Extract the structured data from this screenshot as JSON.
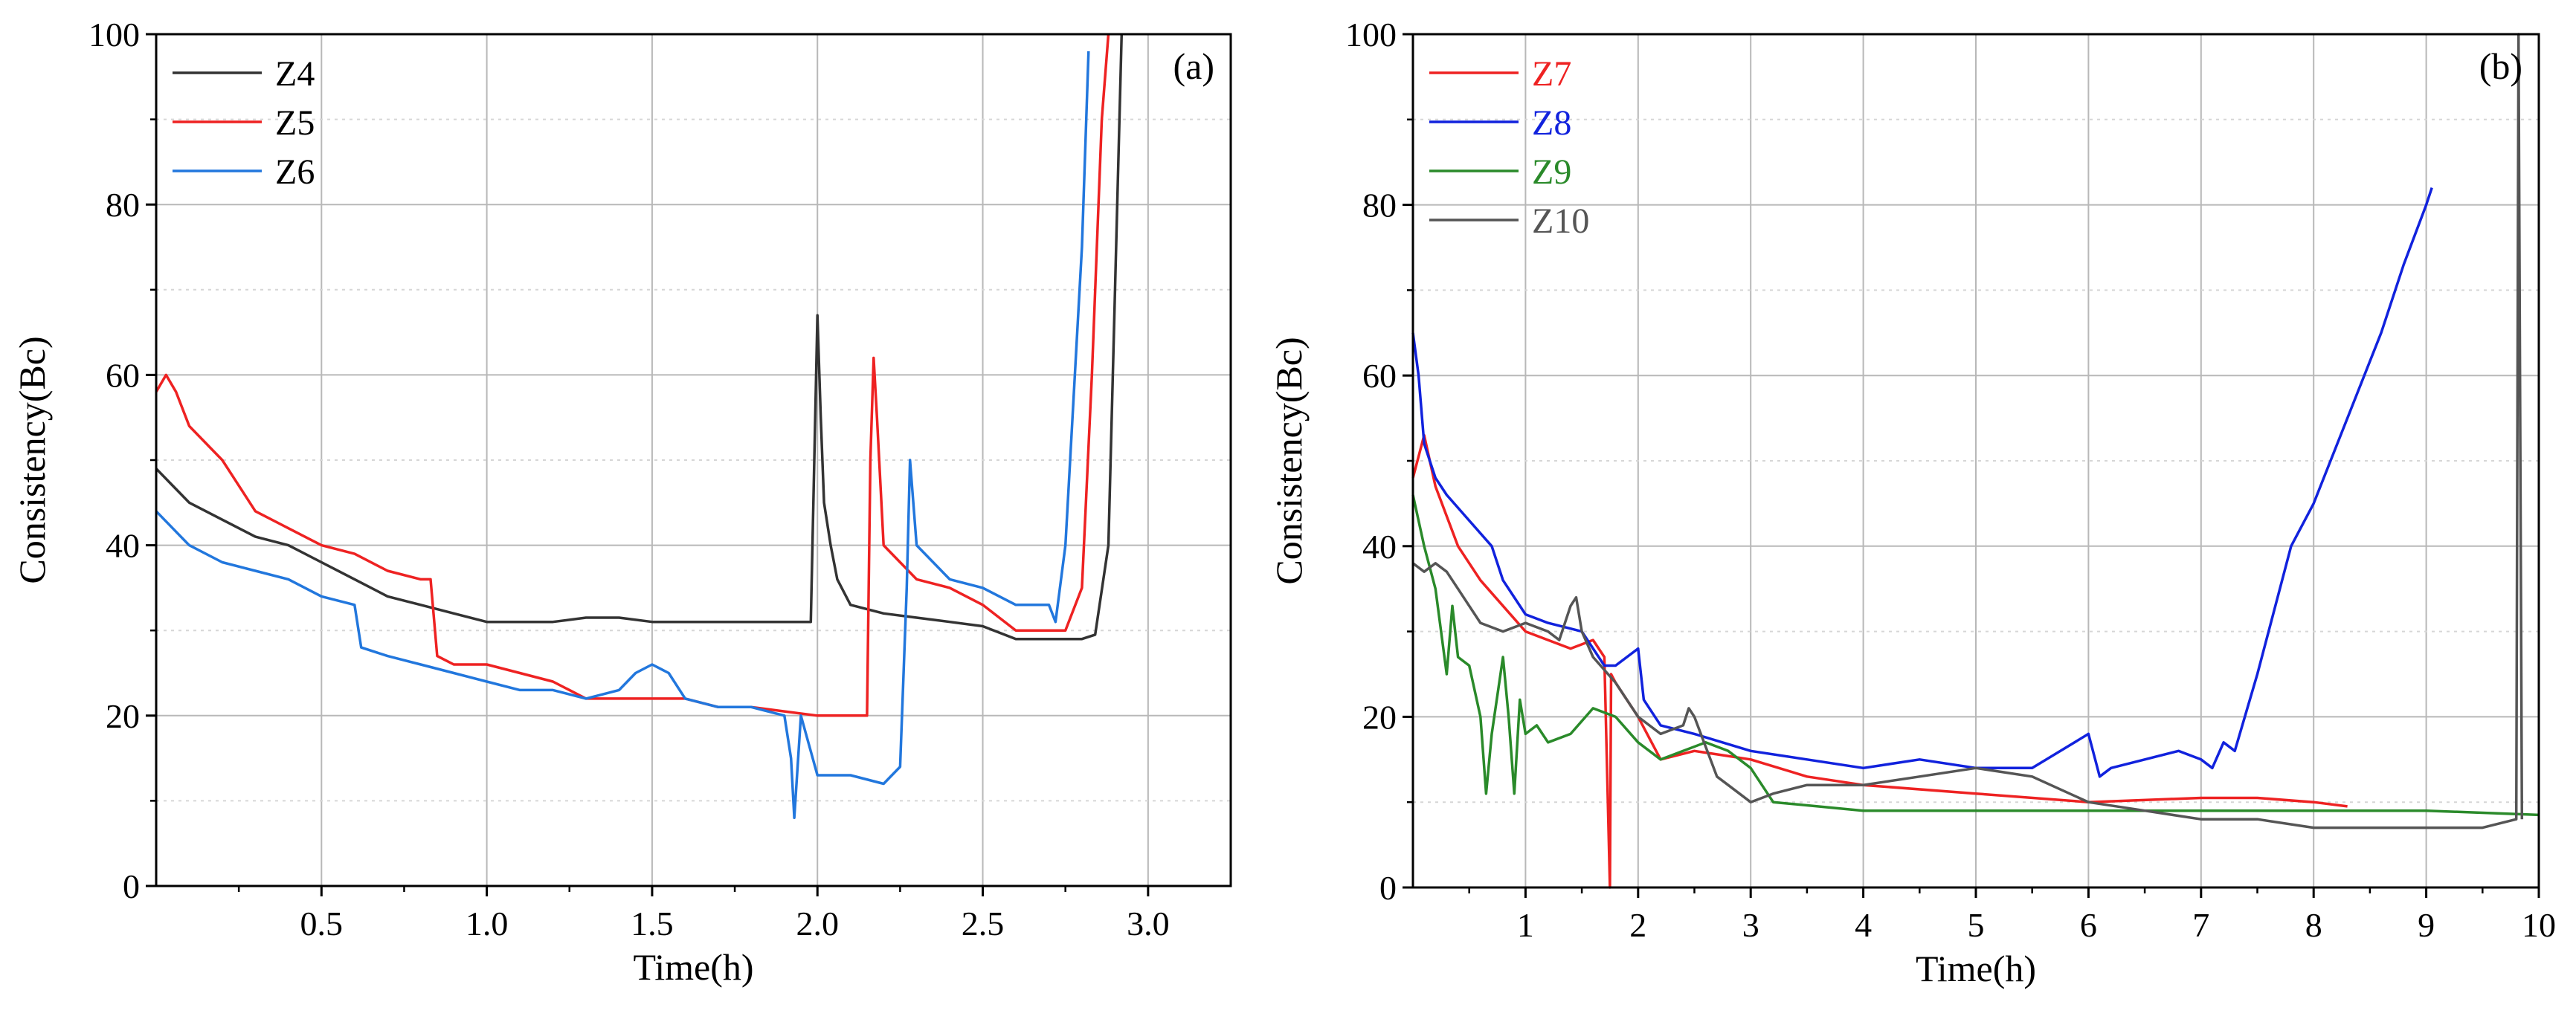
{
  "chart_data": [
    {
      "type": "line",
      "panel_label": "(a)",
      "xlabel": "Time(h)",
      "ylabel": "Consistency(Bc)",
      "xlim": [
        0,
        3.25
      ],
      "ylim": [
        0,
        100
      ],
      "x_ticks": [
        0.5,
        1.0,
        1.5,
        2.0,
        2.5,
        3.0
      ],
      "x_tick_labels": [
        "0.5",
        "1.0",
        "1.5",
        "2.0",
        "2.5",
        "3.0"
      ],
      "y_ticks": [
        0,
        20,
        40,
        60,
        80,
        100
      ],
      "y_tick_labels": [
        "0",
        "20",
        "40",
        "60",
        "80",
        "100"
      ],
      "grid": true,
      "legend_position": "top-left",
      "series": [
        {
          "name": "Z4",
          "color": "#333333",
          "x": [
            0,
            0.05,
            0.1,
            0.2,
            0.3,
            0.4,
            0.5,
            0.6,
            0.7,
            0.8,
            0.9,
            1.0,
            1.1,
            1.2,
            1.3,
            1.4,
            1.5,
            1.6,
            1.7,
            1.8,
            1.9,
            1.98,
            2.0,
            2.01,
            2.02,
            2.04,
            2.06,
            2.1,
            2.2,
            2.3,
            2.4,
            2.5,
            2.6,
            2.7,
            2.8,
            2.84,
            2.88,
            2.9,
            2.92
          ],
          "y": [
            49,
            47,
            45,
            43,
            41,
            40,
            38,
            36,
            34,
            33,
            32,
            31,
            31,
            31,
            31.5,
            31.5,
            31,
            31,
            31,
            31,
            31,
            31,
            67,
            55,
            45,
            40,
            36,
            33,
            32,
            31.5,
            31,
            30.5,
            29,
            29,
            29,
            29.5,
            40,
            70,
            100
          ]
        },
        {
          "name": "Z5",
          "color": "#ee2222",
          "x": [
            0,
            0.03,
            0.06,
            0.1,
            0.15,
            0.2,
            0.25,
            0.3,
            0.4,
            0.5,
            0.6,
            0.7,
            0.8,
            0.83,
            0.85,
            0.9,
            1.0,
            1.1,
            1.2,
            1.3,
            1.4,
            1.5,
            1.6,
            1.7,
            1.8,
            1.9,
            2.0,
            2.1,
            2.15,
            2.16,
            2.17,
            2.18,
            2.2,
            2.25,
            2.3,
            2.4,
            2.5,
            2.6,
            2.7,
            2.75,
            2.8,
            2.83,
            2.86,
            2.88
          ],
          "y": [
            58,
            60,
            58,
            54,
            52,
            50,
            47,
            44,
            42,
            40,
            39,
            37,
            36,
            36,
            27,
            26,
            26,
            25,
            24,
            22,
            22,
            22,
            22,
            21,
            21,
            20.5,
            20,
            20,
            20,
            50,
            62,
            55,
            40,
            38,
            36,
            35,
            33,
            30,
            30,
            30,
            35,
            60,
            90,
            100
          ]
        },
        {
          "name": "Z6",
          "color": "#2277dd",
          "x": [
            0,
            0.05,
            0.1,
            0.2,
            0.3,
            0.4,
            0.5,
            0.6,
            0.62,
            0.7,
            0.8,
            0.9,
            1.0,
            1.1,
            1.2,
            1.3,
            1.4,
            1.45,
            1.5,
            1.55,
            1.6,
            1.7,
            1.8,
            1.9,
            1.92,
            1.93,
            1.95,
            2.0,
            2.1,
            2.2,
            2.25,
            2.27,
            2.28,
            2.3,
            2.4,
            2.5,
            2.6,
            2.7,
            2.72,
            2.75,
            2.8,
            2.82
          ],
          "y": [
            44,
            42,
            40,
            38,
            37,
            36,
            34,
            33,
            28,
            27,
            26,
            25,
            24,
            23,
            23,
            22,
            23,
            25,
            26,
            25,
            22,
            21,
            21,
            20,
            15,
            8,
            20,
            13,
            13,
            12,
            14,
            35,
            50,
            40,
            36,
            35,
            33,
            33,
            31,
            40,
            75,
            98
          ]
        }
      ]
    },
    {
      "type": "line",
      "panel_label": "(b)",
      "xlabel": "Time(h)",
      "ylabel": "Consistency(Bc)",
      "xlim": [
        0,
        10
      ],
      "ylim": [
        0,
        100
      ],
      "x_ticks": [
        1,
        2,
        3,
        4,
        5,
        6,
        7,
        8,
        9,
        10
      ],
      "x_tick_labels": [
        "1",
        "2",
        "3",
        "4",
        "5",
        "6",
        "7",
        "8",
        "9",
        "10"
      ],
      "y_ticks": [
        0,
        20,
        40,
        60,
        80,
        100
      ],
      "y_tick_labels": [
        "0",
        "20",
        "40",
        "60",
        "80",
        "100"
      ],
      "grid": true,
      "legend_position": "top-left",
      "series": [
        {
          "name": "Z7",
          "color": "#ee2222",
          "x": [
            0,
            0.1,
            0.2,
            0.4,
            0.6,
            0.8,
            1.0,
            1.2,
            1.4,
            1.6,
            1.7,
            1.75,
            1.76,
            1.8,
            2.0,
            2.2,
            2.5,
            3.0,
            3.5,
            4.0,
            5.0,
            6.0,
            7.0,
            7.5,
            8.0,
            8.3
          ],
          "y": [
            48,
            53,
            47,
            40,
            36,
            33,
            30,
            29,
            28,
            29,
            27,
            0,
            25,
            24,
            20,
            15,
            16,
            15,
            13,
            12,
            11,
            10,
            10.5,
            10.5,
            10,
            9.5
          ]
        },
        {
          "name": "Z8",
          "color": "#1122dd",
          "x": [
            0,
            0.05,
            0.1,
            0.2,
            0.3,
            0.5,
            0.7,
            0.8,
            1.0,
            1.2,
            1.5,
            1.7,
            1.8,
            2.0,
            2.05,
            2.2,
            2.5,
            3.0,
            3.5,
            4.0,
            4.5,
            5.0,
            5.5,
            6.0,
            6.1,
            6.2,
            6.5,
            6.8,
            7.0,
            7.1,
            7.2,
            7.3,
            7.5,
            7.8,
            8.0,
            8.3,
            8.6,
            8.8,
            9.0,
            9.05
          ],
          "y": [
            65,
            60,
            52,
            48,
            46,
            43,
            40,
            36,
            32,
            31,
            30,
            26,
            26,
            28,
            22,
            19,
            18,
            16,
            15,
            14,
            15,
            14,
            14,
            18,
            13,
            14,
            15,
            16,
            15,
            14,
            17,
            16,
            25,
            40,
            45,
            55,
            65,
            73,
            80,
            82
          ]
        },
        {
          "name": "Z9",
          "color": "#2a8a2a",
          "x": [
            0,
            0.1,
            0.2,
            0.3,
            0.35,
            0.4,
            0.5,
            0.6,
            0.65,
            0.7,
            0.8,
            0.85,
            0.9,
            0.95,
            1.0,
            1.1,
            1.2,
            1.4,
            1.6,
            1.8,
            2.0,
            2.2,
            2.4,
            2.6,
            2.8,
            3.0,
            3.2,
            4.0,
            5.0,
            6.0,
            7.0,
            8.0,
            9.0,
            10.0
          ],
          "y": [
            46,
            40,
            35,
            25,
            33,
            27,
            26,
            20,
            11,
            18,
            27,
            20,
            11,
            22,
            18,
            19,
            17,
            18,
            21,
            20,
            17,
            15,
            16,
            17,
            16,
            14,
            10,
            9,
            9,
            9,
            9,
            9,
            9,
            8.5
          ]
        },
        {
          "name": "Z10",
          "color": "#555555",
          "x": [
            0,
            0.1,
            0.2,
            0.3,
            0.4,
            0.5,
            0.6,
            0.8,
            1.0,
            1.2,
            1.3,
            1.4,
            1.45,
            1.5,
            1.6,
            1.8,
            2.0,
            2.2,
            2.4,
            2.45,
            2.5,
            2.7,
            2.8,
            3.0,
            3.2,
            3.5,
            4.0,
            4.5,
            5.0,
            5.5,
            6.0,
            6.5,
            7.0,
            7.5,
            8.0,
            8.5,
            9.0,
            9.5,
            9.8,
            9.82,
            9.85
          ],
          "y": [
            38,
            37,
            38,
            37,
            35,
            33,
            31,
            30,
            31,
            30,
            29,
            33,
            34,
            30,
            27,
            24,
            20,
            18,
            19,
            21,
            20,
            13,
            12,
            10,
            11,
            12,
            12,
            13,
            14,
            13,
            10,
            9,
            8,
            8,
            7,
            7,
            7,
            7,
            8,
            100,
            8
          ]
        }
      ]
    }
  ]
}
